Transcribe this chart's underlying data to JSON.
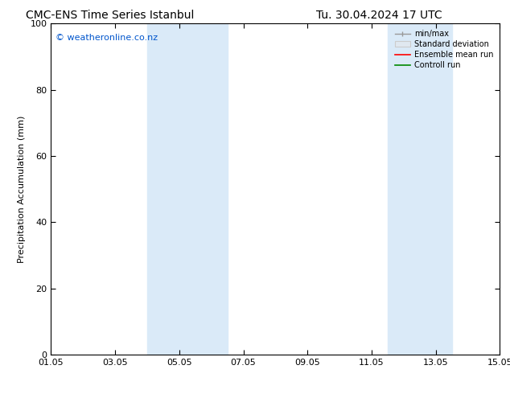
{
  "title_left": "CMC-ENS Time Series Istanbul",
  "title_right": "Tu. 30.04.2024 17 UTC",
  "ylabel": "Precipitation Accumulation (mm)",
  "ylim": [
    0,
    100
  ],
  "yticks": [
    0,
    20,
    40,
    60,
    80,
    100
  ],
  "xtick_labels": [
    "01.05",
    "03.05",
    "05.05",
    "07.05",
    "09.05",
    "11.05",
    "13.05",
    "15.05"
  ],
  "xtick_positions": [
    0,
    2,
    4,
    6,
    8,
    10,
    12,
    14
  ],
  "blue_bands": [
    {
      "start": 3.0,
      "end": 5.5
    },
    {
      "start": 10.5,
      "end": 12.5
    }
  ],
  "blue_band_color": "#daeaf8",
  "watermark_text": "© weatheronline.co.nz",
  "watermark_color": "#0055cc",
  "legend_labels": [
    "min/max",
    "Standard deviation",
    "Ensemble mean run",
    "Controll run"
  ],
  "legend_colors_line": [
    "#999999",
    "#cccccc",
    "#ff0000",
    "#008800"
  ],
  "background_color": "#ffffff",
  "font_size_title": 10,
  "font_size_axis": 8,
  "font_size_tick": 8,
  "font_size_legend": 7,
  "font_size_watermark": 8
}
